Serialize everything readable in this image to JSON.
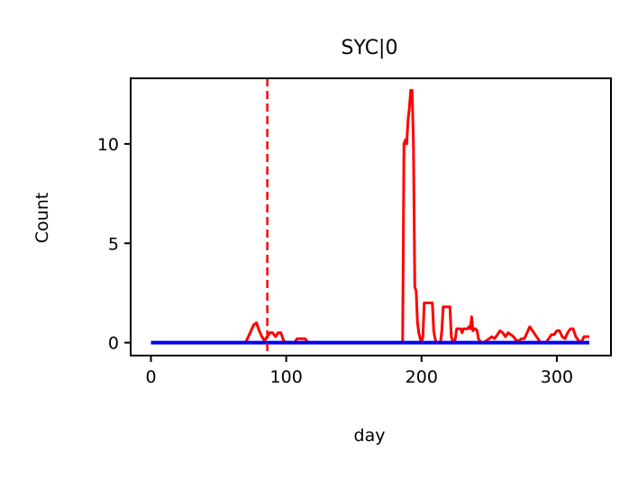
{
  "chart_data": {
    "type": "line",
    "title": "SYC|0",
    "xlabel": "day",
    "ylabel": "Count",
    "xlim": [
      -15,
      340
    ],
    "ylim": [
      -0.65,
      13.3
    ],
    "xticks": [
      0,
      100,
      200,
      300
    ],
    "yticks": [
      0,
      5,
      10
    ],
    "grid": false,
    "vline": {
      "x": 86,
      "color": "#ff0000",
      "style": "dashed"
    },
    "series": [
      {
        "color": "#ff0000",
        "x": [
          0,
          70,
          72,
          74,
          76,
          78,
          80,
          82,
          84,
          86,
          88,
          90,
          92,
          94,
          96,
          98,
          100,
          102,
          104,
          106,
          108,
          110,
          112,
          114,
          116,
          120,
          186,
          187,
          188,
          189,
          190,
          191,
          192,
          193,
          194,
          195,
          196,
          197,
          198,
          199,
          200,
          201,
          202,
          203,
          204,
          205,
          206,
          207,
          208,
          209,
          210,
          211,
          212,
          213,
          214,
          215,
          216,
          217,
          218,
          219,
          220,
          221,
          222,
          223,
          224,
          225,
          226,
          227,
          228,
          229,
          230,
          231,
          232,
          233,
          234,
          235,
          236,
          237,
          238,
          239,
          240,
          241,
          242,
          243,
          244,
          245,
          246,
          248,
          250,
          252,
          254,
          256,
          258,
          260,
          262,
          264,
          266,
          268,
          270,
          272,
          274,
          276,
          278,
          280,
          282,
          284,
          286,
          288,
          290,
          292,
          294,
          296,
          298,
          300,
          302,
          304,
          306,
          308,
          310,
          312,
          314,
          316,
          318,
          320,
          322,
          324
        ],
        "values": [
          0,
          0,
          0.3,
          0.6,
          0.9,
          1.0,
          0.6,
          0.3,
          0.1,
          0.3,
          0.5,
          0.5,
          0.3,
          0.5,
          0.5,
          0.1,
          0,
          0,
          0,
          0,
          0.2,
          0.2,
          0.2,
          0.2,
          0,
          0,
          0,
          10.0,
          10.2,
          10.0,
          11.2,
          11.8,
          12.7,
          12.7,
          10.0,
          2.8,
          2.6,
          1.0,
          0.5,
          0.2,
          0,
          0.3,
          2.0,
          2.0,
          2.0,
          2.0,
          2.0,
          2.0,
          2.0,
          0.6,
          0.2,
          0,
          0,
          0,
          0,
          0.6,
          1.8,
          1.8,
          1.8,
          1.8,
          1.8,
          1.8,
          0.3,
          0.1,
          0,
          0.2,
          0.7,
          0.7,
          0.7,
          0.7,
          0.5,
          0.7,
          0.7,
          0.7,
          0.7,
          0.8,
          0.7,
          1.3,
          0.6,
          0.7,
          0.7,
          0.6,
          0.2,
          0.1,
          0,
          0,
          0,
          0.1,
          0.2,
          0.3,
          0.2,
          0.4,
          0.6,
          0.5,
          0.3,
          0.5,
          0.4,
          0.3,
          0.1,
          0.1,
          0.2,
          0.2,
          0.5,
          0.8,
          0.6,
          0.4,
          0.2,
          0,
          0,
          0,
          0.2,
          0.4,
          0.4,
          0.6,
          0.6,
          0.3,
          0.2,
          0.5,
          0.7,
          0.7,
          0.3,
          0.1,
          0,
          0.3,
          0.3,
          0.3
        ]
      },
      {
        "color": "#0000ee",
        "x": [
          0,
          324
        ],
        "values": [
          0,
          0
        ]
      }
    ]
  }
}
